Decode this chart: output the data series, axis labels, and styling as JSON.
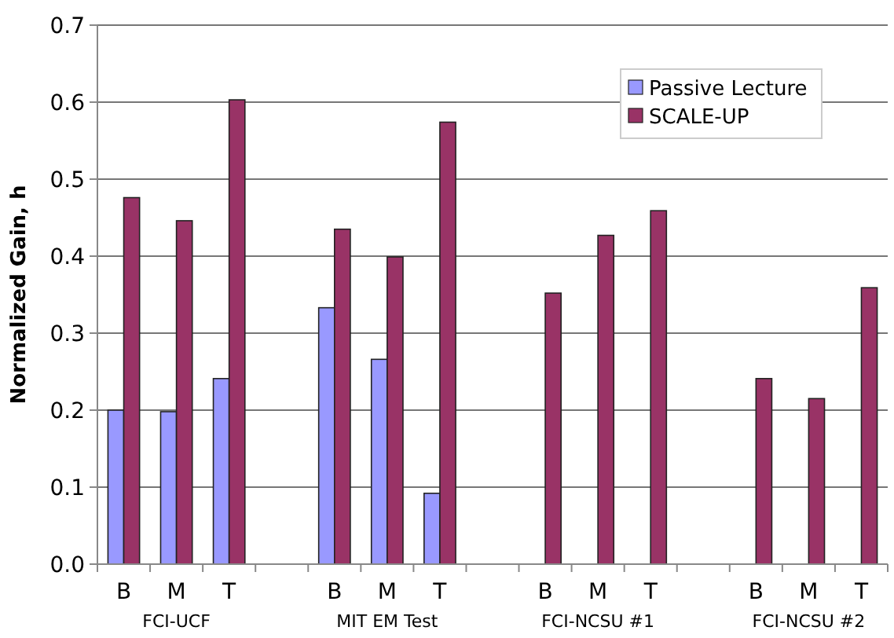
{
  "chart_data": {
    "type": "bar",
    "ylabel": "Normalized Gain, h",
    "categories": [
      "B",
      "M",
      "T",
      null,
      "B",
      "M",
      "T",
      null,
      "B",
      "M",
      "T",
      null,
      "B",
      "M",
      "T"
    ],
    "series": [
      {
        "name": "Passive Lecture",
        "color": "#9999ff",
        "values": [
          0.2,
          0.198,
          0.241,
          null,
          0.333,
          0.266,
          0.092,
          null,
          null,
          null,
          null,
          null,
          null,
          null,
          null
        ]
      },
      {
        "name": "SCALE-UP",
        "color": "#993366",
        "values": [
          0.476,
          0.446,
          0.603,
          null,
          0.435,
          0.399,
          0.574,
          null,
          0.352,
          0.427,
          0.459,
          null,
          0.241,
          0.215,
          0.359
        ]
      }
    ],
    "annotations": [
      "FCI-UCF",
      "MIT EM Test",
      "FCI-NCSU #1",
      "FCI-NCSU #2"
    ],
    "ylim": [
      0,
      0.7
    ],
    "yticks": [
      {
        "value": 0,
        "label": "0.0"
      },
      {
        "value": 0.1,
        "label": "0.1"
      },
      {
        "value": 0.2,
        "label": "0.2"
      },
      {
        "value": 0.3,
        "label": "0.3"
      },
      {
        "value": 0.4,
        "label": "0.4"
      },
      {
        "value": 0.5,
        "label": "0.5"
      },
      {
        "value": 0.6,
        "label": "0.6"
      },
      {
        "value": 0.7,
        "label": "0.7"
      }
    ],
    "grid": "y",
    "legend": "top right"
  }
}
